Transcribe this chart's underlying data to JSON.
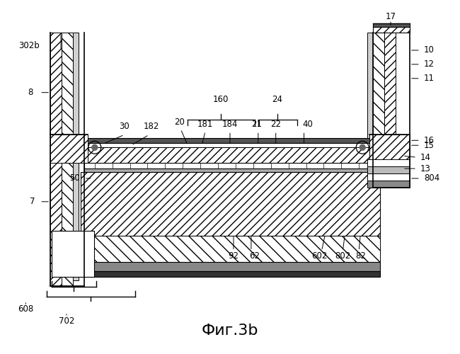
{
  "title": "Фиг.3b",
  "bg_color": "#ffffff",
  "title_fontsize": 16
}
